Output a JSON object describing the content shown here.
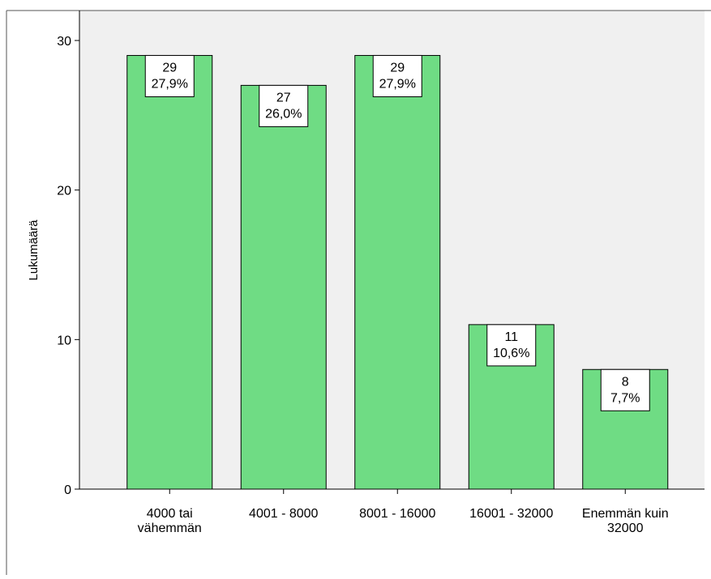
{
  "chart_data": {
    "type": "bar",
    "title": "",
    "xlabel": "",
    "ylabel": "Lukumäärä",
    "ylim": [
      0,
      30
    ],
    "yticks": [
      0,
      10,
      20,
      30
    ],
    "categories": [
      [
        "4000 tai",
        "vähemmän"
      ],
      [
        "4001 - 8000"
      ],
      [
        "8001 - 16000"
      ],
      [
        "16001 - 32000"
      ],
      [
        "Enemmän kuin",
        "32000"
      ]
    ],
    "values": [
      29,
      27,
      29,
      11,
      8
    ],
    "percent_labels": [
      "27,9%",
      "26,0%",
      "27,9%",
      "10,6%",
      "7,7%"
    ],
    "grid": false,
    "colors": {
      "bar_fill": "#6fdc84",
      "plot_background": "#f0f0f0",
      "axis": "#000000"
    }
  }
}
